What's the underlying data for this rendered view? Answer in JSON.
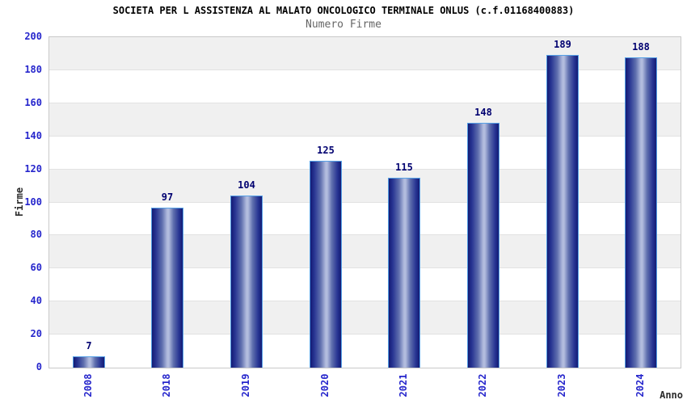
{
  "chart_data": {
    "type": "bar",
    "title": "SOCIETA PER L ASSISTENZA AL MALATO ONCOLOGICO TERMINALE ONLUS (c.f.01168400883)",
    "subtitle": "Numero Firme",
    "xlabel": "Anno",
    "ylabel": "Firme",
    "categories": [
      "2008",
      "2018",
      "2019",
      "2020",
      "2021",
      "2022",
      "2023",
      "2024"
    ],
    "values": [
      7,
      97,
      104,
      125,
      115,
      148,
      189,
      188
    ],
    "ylim": [
      0,
      200
    ],
    "ytick_step": 20,
    "yticks": [
      0,
      20,
      40,
      60,
      80,
      100,
      120,
      140,
      160,
      180,
      200
    ],
    "grid": "horizontal-bands",
    "legend": "none",
    "colors": {
      "title_color": "#000000",
      "subtitle_color": "#666666",
      "tick_color": "#2626cc",
      "value_color": "#000070",
      "axis_title_color": "#2b2b2b",
      "band_gray": "#f0f0f0",
      "band_white": "#ffffff",
      "grid_line": "#e2e2e2",
      "plot_border": "#c9c9c9",
      "bar_border": "#55a0e6",
      "bar_dark": "#131b74",
      "bar_mid": "#5f6fae",
      "bar_light": "#b2bcde"
    }
  }
}
